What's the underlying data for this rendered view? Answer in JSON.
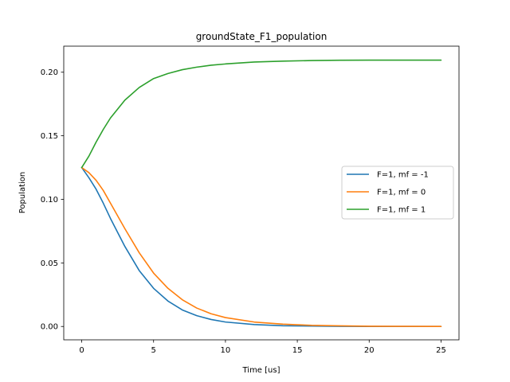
{
  "chart_data": {
    "type": "line",
    "title": "groundState_F1_population",
    "xlabel": "Time [us]",
    "ylabel": "Population",
    "xlim": [
      -1.25,
      26.25
    ],
    "ylim": [
      -0.0105,
      0.2205
    ],
    "xticks": [
      0,
      5,
      10,
      15,
      20,
      25
    ],
    "yticks": [
      0.0,
      0.05,
      0.1,
      0.15,
      0.2
    ],
    "xtick_labels": [
      "0",
      "5",
      "10",
      "15",
      "20",
      "25"
    ],
    "ytick_labels": [
      "0.00",
      "0.05",
      "0.10",
      "0.15",
      "0.20"
    ],
    "grid": false,
    "legend_position": "center-right",
    "x": [
      0,
      0.5,
      1,
      1.5,
      2,
      3,
      4,
      5,
      6,
      7,
      8,
      9,
      10,
      12,
      14,
      16,
      18,
      20,
      22,
      25
    ],
    "series": [
      {
        "name": "F=1, mf = -1",
        "color": "#1f77b4",
        "values": [
          0.125,
          0.117,
          0.108,
          0.097,
          0.085,
          0.063,
          0.044,
          0.03,
          0.02,
          0.013,
          0.0085,
          0.0055,
          0.0035,
          0.0015,
          0.0006,
          0.0003,
          0.0001,
          0.0,
          0.0,
          0.0
        ]
      },
      {
        "name": "F=1, mf = 0",
        "color": "#ff7f0e",
        "values": [
          0.125,
          0.121,
          0.115,
          0.107,
          0.097,
          0.077,
          0.058,
          0.042,
          0.03,
          0.021,
          0.0145,
          0.01,
          0.007,
          0.0035,
          0.0018,
          0.0009,
          0.0005,
          0.0002,
          0.0001,
          0.0
        ]
      },
      {
        "name": "F=1, mf = 1",
        "color": "#2ca02c",
        "values": [
          0.125,
          0.134,
          0.145,
          0.155,
          0.164,
          0.178,
          0.188,
          0.195,
          0.199,
          0.202,
          0.204,
          0.2055,
          0.2065,
          0.208,
          0.2087,
          0.2092,
          0.2094,
          0.2095,
          0.2095,
          0.2095
        ]
      }
    ]
  }
}
